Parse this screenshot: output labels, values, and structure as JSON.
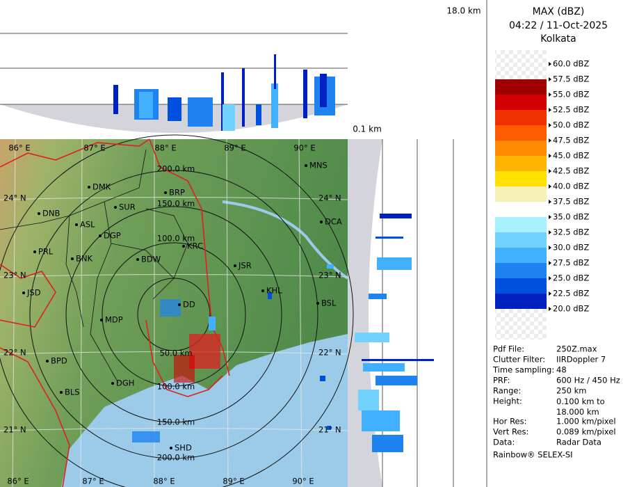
{
  "header": {
    "product": "MAX (dBZ)",
    "datetime": "04:22 / 11-Oct-2025",
    "location": "Kolkata"
  },
  "height_labels": {
    "top": "18.0 km",
    "bottom": "0.1 km"
  },
  "legend": {
    "items": [
      {
        "label": "60.0 dBZ"
      },
      {
        "label": "57.5 dBZ",
        "color": "#9e0000"
      },
      {
        "label": "55.0 dBZ",
        "color": "#d20000"
      },
      {
        "label": "52.5 dBZ",
        "color": "#f03000"
      },
      {
        "label": "50.0 dBZ",
        "color": "#ff5a00"
      },
      {
        "label": "47.5 dBZ",
        "color": "#ff8c00"
      },
      {
        "label": "45.0 dBZ",
        "color": "#ffb400"
      },
      {
        "label": "42.5 dBZ",
        "color": "#ffe000"
      },
      {
        "label": "40.0 dBZ",
        "color": "#f7f0b6"
      },
      {
        "label": "37.5 dBZ",
        "color": "#ffffff"
      },
      {
        "label": "35.0 dBZ",
        "color": "#a6f0ff"
      },
      {
        "label": "32.5 dBZ",
        "color": "#72d2ff"
      },
      {
        "label": "30.0 dBZ",
        "color": "#40b0ff"
      },
      {
        "label": "27.5 dBZ",
        "color": "#1e82f0"
      },
      {
        "label": "25.0 dBZ",
        "color": "#0050e0"
      },
      {
        "label": "22.5 dBZ",
        "color": "#0020c0"
      },
      {
        "label": "20.0 dBZ"
      }
    ]
  },
  "map": {
    "lon_labels": [
      "86° E",
      "87° E",
      "88° E",
      "89° E",
      "90° E"
    ],
    "lat_labels": [
      "24° N",
      "23° N",
      "22° N",
      "21° N"
    ],
    "range_labels": [
      "200.0 km",
      "150.0 km",
      "100.0 km",
      "50.0 km",
      "50.0 km",
      "100.0 km",
      "150.0 km",
      "200.0 km"
    ],
    "cities": [
      "MNS",
      "BRP",
      "DMK",
      "SUR",
      "DNB",
      "ASL",
      "DGP",
      "KRC",
      "PRL",
      "BNK",
      "BDW",
      "JSR",
      "DCA",
      "KHL",
      "BSL",
      "JSD",
      "DD",
      "MDP",
      "BPD",
      "DGH",
      "BLS",
      "SHD"
    ]
  },
  "info": {
    "rows": [
      [
        "Pdf File:",
        "250Z.max"
      ],
      [
        "Clutter Filter:",
        "IIRDoppler 7"
      ],
      [
        "Time sampling:",
        "48"
      ],
      [
        "PRF:",
        "600 Hz / 450 Hz"
      ],
      [
        "Range:",
        "250 km"
      ],
      [
        "Height:",
        "0.100 km to 18.000 km"
      ],
      [
        "Hor Res:",
        "1.000 km/pixel"
      ],
      [
        "Vert Res:",
        "0.089 km/pixel"
      ],
      [
        "Data:",
        "Radar Data"
      ]
    ],
    "footer": "Rainbow® SELEX-SI"
  }
}
